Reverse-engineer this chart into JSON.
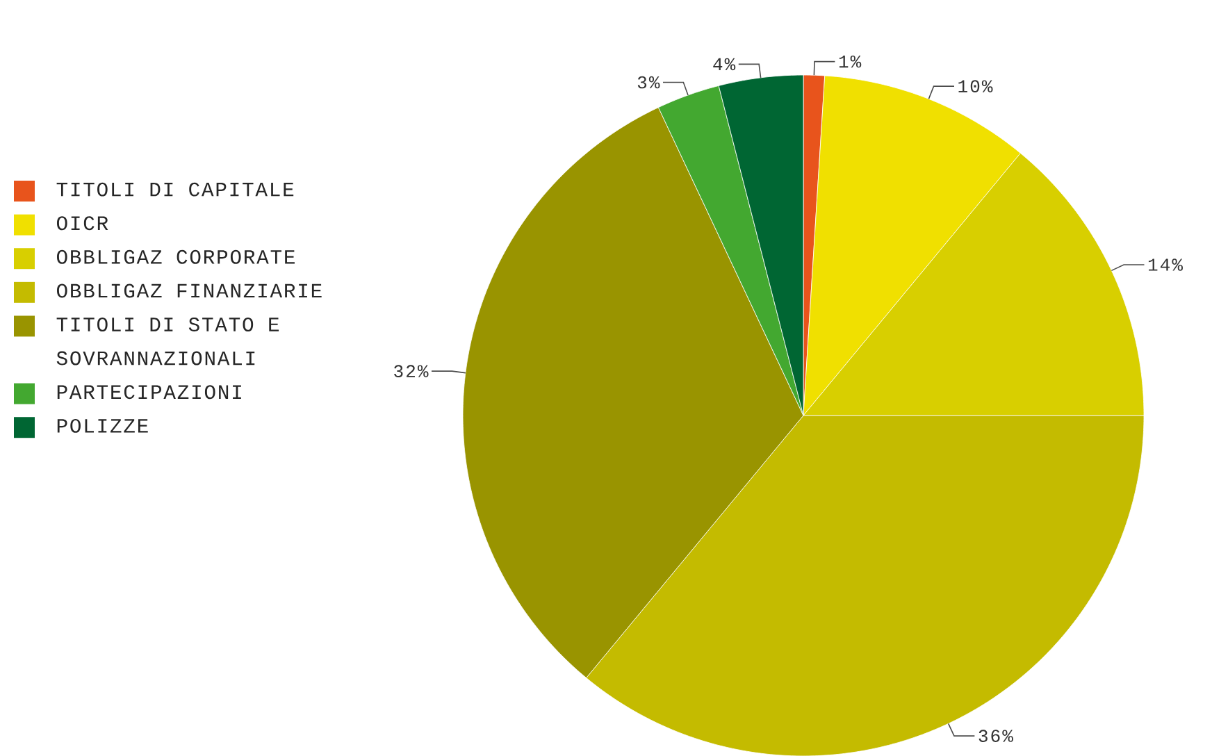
{
  "chart_data": {
    "type": "pie",
    "categories": [
      "TITOLI DI CAPITALE",
      "OICR",
      "OBBLIGAZ CORPORATE",
      "OBBLIGAZ FINANZIARIE",
      "TITOLI DI STATO E SOVRANNAZIONALI",
      "PARTECIPAZIONI",
      "POLIZZE"
    ],
    "values": [
      1,
      10,
      14,
      36,
      32,
      3,
      4
    ],
    "colors": [
      "#e8541c",
      "#f0e000",
      "#d8cf00",
      "#c4bb00",
      "#999400",
      "#43a830",
      "#006633"
    ],
    "value_labels": [
      "1%",
      "10%",
      "14%",
      "36%",
      "32%",
      "3%",
      "4%"
    ],
    "legend": "left"
  }
}
